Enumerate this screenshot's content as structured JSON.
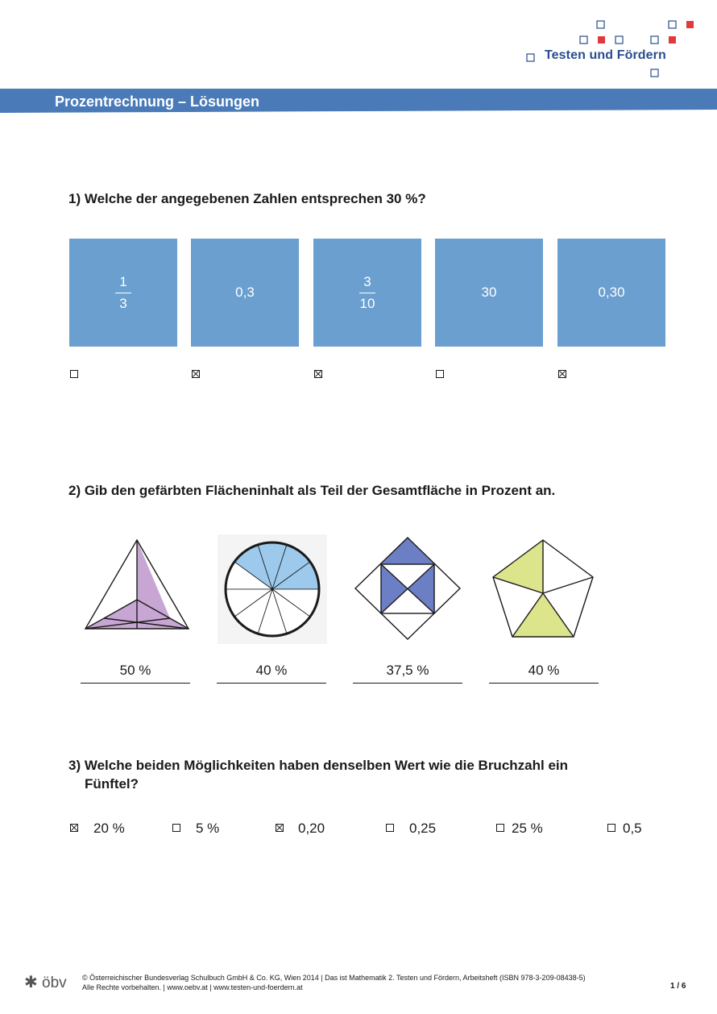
{
  "header": {
    "brand": "Testen und Fördern",
    "title": "Prozentrechnung – Lösungen"
  },
  "q1": {
    "question": "1) Welche der angegebenen Zahlen entsprechen 30 %?",
    "options": [
      {
        "num": "1",
        "den": "3",
        "checked": false
      },
      {
        "text": "0,3",
        "checked": true
      },
      {
        "num": "3",
        "den": "10",
        "checked": true
      },
      {
        "text": "30",
        "checked": false
      },
      {
        "text": "0,30",
        "checked": true
      }
    ]
  },
  "q2": {
    "question": "2) Gib den gefärbten Flächeninhalt als Teil der Gesamtfläche in Prozent an.",
    "answers": [
      "50 %",
      "40 %",
      "37,5 %",
      "40 %"
    ],
    "colors": {
      "triangle": "#c8a6d4",
      "circle": "#9dcaec",
      "square": "#6c7fc4",
      "pentagon": "#dce58c"
    }
  },
  "q3": {
    "question_line1": "3) Welche beiden Möglichkeiten haben denselben Wert wie die Bruchzahl ein",
    "question_line2": "Fünftel?",
    "options": [
      {
        "label": "20 %",
        "checked": true
      },
      {
        "label": "5 %",
        "checked": false
      },
      {
        "label": "0,20",
        "checked": true
      },
      {
        "label": "0,25",
        "checked": false
      },
      {
        "label": "25 %",
        "checked": false
      },
      {
        "label": "0,5",
        "checked": false
      }
    ]
  },
  "footer": {
    "publisher_logo": "öbv",
    "line1": "© Österreichischer Bundesverlag Schulbuch GmbH & Co. KG, Wien 2014 | Das ist Mathematik 2. Testen und Fördern, Arbeitsheft (ISBN 978-3-209-08438-5)",
    "line2": "Alle Rechte vorbehalten. | www.oebv.at | www.testen-und-foerdern.at",
    "page": "1 / 6"
  },
  "colors": {
    "banner": "#4a7ab8",
    "box": "#6a9fcf",
    "logo_red": "#e03a3a",
    "logo_blue": "#2a4d8f"
  }
}
